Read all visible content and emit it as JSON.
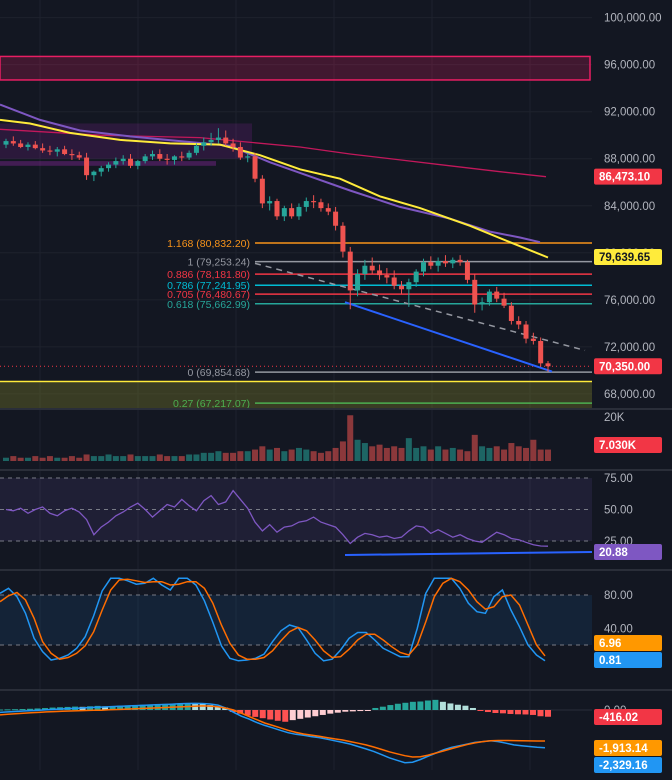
{
  "chart_data": [
    {
      "type": "candlestick",
      "panel": "price",
      "y_ticks": [
        "100,000.00",
        "96,000.00",
        "92,000.00",
        "88,000.00",
        "84,000.00",
        "80,000.00",
        "76,000.00",
        "72,000.00",
        "68,000.00"
      ],
      "ylim": [
        66800,
        101500
      ],
      "tick_values": [
        100000,
        96000,
        92000,
        88000,
        84000,
        80000,
        76000,
        72000,
        68000
      ],
      "fib_levels": [
        {
          "label": "1.168 (80,832.20)",
          "value": 80832.2,
          "color": "#f7931a"
        },
        {
          "label": "1 (79,253.24)",
          "value": 79253.24,
          "color": "#9598a1"
        },
        {
          "label": "0.886 (78,181.80)",
          "value": 78181.8,
          "color": "#f23645"
        },
        {
          "label": "0.786 (77,241.95)",
          "value": 77241.95,
          "color": "#00bcd4"
        },
        {
          "label": "0.705 (76,480.67)",
          "value": 76480.67,
          "color": "#f23645"
        },
        {
          "label": "0.618 (75,662.99)",
          "value": 75662.99,
          "color": "#26a69a"
        },
        {
          "label": "0 (69,854.68)",
          "value": 69854.68,
          "color": "#9598a1"
        },
        {
          "label": "0.27 (67,217.07)",
          "value": 67217.07,
          "color": "#4caf50"
        }
      ],
      "horizontal_support": {
        "value": 69050,
        "color": "#ffeb3b"
      },
      "price_tags": [
        {
          "text": "86,473.10",
          "value": 86473.1,
          "bg": "#f23645",
          "fg": "#ffffff"
        },
        {
          "text": "79,639.65",
          "value": 79639.65,
          "bg": "#ffeb3b",
          "fg": "#131722"
        },
        {
          "text": "70,350.00",
          "value": 70350,
          "bg": "#f23645",
          "fg": "#ffffff"
        }
      ],
      "candles_ohlc": [
        [
          89200,
          89700,
          88900,
          89500
        ],
        [
          89500,
          89900,
          89100,
          89300
        ],
        [
          89300,
          89600,
          88900,
          89000
        ],
        [
          89000,
          89400,
          88700,
          89200
        ],
        [
          89200,
          89500,
          88800,
          88900
        ],
        [
          88900,
          89300,
          88500,
          88700
        ],
        [
          88700,
          89100,
          88300,
          88600
        ],
        [
          88600,
          89000,
          88200,
          88800
        ],
        [
          88800,
          89100,
          88300,
          88400
        ],
        [
          88400,
          88800,
          87900,
          88300
        ],
        [
          88300,
          88600,
          87900,
          88100
        ],
        [
          88100,
          88500,
          86200,
          86600
        ],
        [
          86600,
          87000,
          86100,
          86900
        ],
        [
          86900,
          87400,
          86500,
          87200
        ],
        [
          87200,
          87700,
          86900,
          87500
        ],
        [
          87500,
          88100,
          87200,
          87800
        ],
        [
          87800,
          88300,
          87500,
          88000
        ],
        [
          88000,
          88400,
          87200,
          87400
        ],
        [
          87400,
          87900,
          87100,
          87800
        ],
        [
          87800,
          88400,
          87600,
          88200
        ],
        [
          88200,
          88700,
          87900,
          88400
        ],
        [
          88400,
          88800,
          87800,
          88000
        ],
        [
          88000,
          88400,
          87500,
          87900
        ],
        [
          87900,
          88300,
          87500,
          88200
        ],
        [
          88200,
          88600,
          87800,
          88100
        ],
        [
          88100,
          88700,
          87900,
          88500
        ],
        [
          88500,
          89300,
          88300,
          89100
        ],
        [
          89100,
          89800,
          88700,
          89400
        ],
        [
          89400,
          90200,
          89100,
          89600
        ],
        [
          89600,
          90600,
          89300,
          89800
        ],
        [
          89800,
          90400,
          89100,
          89300
        ],
        [
          89300,
          89700,
          88600,
          89000
        ],
        [
          89000,
          89400,
          87900,
          88100
        ],
        [
          88100,
          88500,
          87700,
          88200
        ],
        [
          88200,
          88500,
          86000,
          86300
        ],
        [
          86300,
          86600,
          83800,
          84200
        ],
        [
          84200,
          84800,
          83600,
          84400
        ],
        [
          84400,
          84600,
          82800,
          83100
        ],
        [
          83100,
          84000,
          82700,
          83800
        ],
        [
          83800,
          84200,
          82900,
          83100
        ],
        [
          83100,
          84200,
          82800,
          83900
        ],
        [
          83900,
          84700,
          83500,
          84400
        ],
        [
          84400,
          84900,
          83800,
          84300
        ],
        [
          84300,
          84600,
          83500,
          83800
        ],
        [
          83800,
          84200,
          83200,
          83500
        ],
        [
          83500,
          83900,
          81900,
          82300
        ],
        [
          82300,
          82600,
          79600,
          80100
        ],
        [
          80100,
          80500,
          75200,
          76800
        ],
        [
          76800,
          78600,
          76300,
          78200
        ],
        [
          78200,
          79400,
          77700,
          78900
        ],
        [
          78900,
          79600,
          78200,
          78500
        ],
        [
          78500,
          79000,
          77700,
          78100
        ],
        [
          78100,
          78700,
          77400,
          77900
        ],
        [
          77900,
          78500,
          76900,
          77200
        ],
        [
          77200,
          77600,
          76500,
          76900
        ],
        [
          76900,
          77800,
          75400,
          77500
        ],
        [
          77500,
          78600,
          77100,
          78400
        ],
        [
          78400,
          79500,
          78000,
          79200
        ],
        [
          79200,
          79700,
          78600,
          78900
        ],
        [
          78900,
          79600,
          78400,
          79300
        ],
        [
          79300,
          79800,
          78800,
          79100
        ],
        [
          79100,
          79600,
          78700,
          79400
        ],
        [
          79400,
          79800,
          78900,
          79200
        ],
        [
          79200,
          79400,
          77400,
          77700
        ],
        [
          77700,
          78200,
          74900,
          75600
        ],
        [
          75600,
          76200,
          75100,
          75800
        ],
        [
          75800,
          76900,
          75500,
          76700
        ],
        [
          76700,
          77100,
          75800,
          76100
        ],
        [
          76100,
          76600,
          75300,
          75500
        ],
        [
          75500,
          75800,
          73900,
          74200
        ],
        [
          74200,
          74600,
          73500,
          73900
        ],
        [
          73900,
          74200,
          72300,
          72700
        ],
        [
          72700,
          73200,
          72200,
          72500
        ],
        [
          72500,
          72800,
          70300,
          70600
        ],
        [
          70600,
          70800,
          69900,
          70350
        ]
      ],
      "ma_purple": [
        [
          0,
          92600
        ],
        [
          40,
          91300
        ],
        [
          80,
          90400
        ],
        [
          130,
          89900
        ],
        [
          180,
          89500
        ],
        [
          230,
          89100
        ],
        [
          270,
          87700
        ],
        [
          310,
          86500
        ],
        [
          350,
          85300
        ],
        [
          400,
          83900
        ],
        [
          450,
          82900
        ],
        [
          490,
          81800
        ],
        [
          520,
          81300
        ],
        [
          540,
          80900
        ]
      ],
      "ma_yellow": [
        [
          0,
          91300
        ],
        [
          30,
          91000
        ],
        [
          70,
          90200
        ],
        [
          120,
          89600
        ],
        [
          170,
          89300
        ],
        [
          220,
          89200
        ],
        [
          260,
          88300
        ],
        [
          300,
          87100
        ],
        [
          340,
          86300
        ],
        [
          380,
          84800
        ],
        [
          420,
          83800
        ],
        [
          470,
          82300
        ],
        [
          510,
          80900
        ],
        [
          548,
          79600
        ]
      ],
      "ma_pink": [
        [
          0,
          90500
        ],
        [
          100,
          90000
        ],
        [
          200,
          89800
        ],
        [
          300,
          89000
        ],
        [
          350,
          88400
        ],
        [
          400,
          87900
        ],
        [
          450,
          87400
        ],
        [
          500,
          86900
        ],
        [
          546,
          86473
        ]
      ]
    },
    {
      "type": "bar",
      "panel": "volume",
      "y_ticks": [
        "20K"
      ],
      "tag": {
        "text": "7.030K",
        "bg": "#f23645",
        "fg": "#ffffff"
      },
      "values": [
        2,
        3,
        2,
        2,
        3,
        2,
        3,
        2,
        2,
        3,
        2,
        4,
        3,
        3,
        4,
        3,
        3,
        4,
        3,
        3,
        3,
        4,
        3,
        3,
        3,
        4,
        4,
        5,
        5,
        6,
        5,
        5,
        6,
        6,
        7,
        9,
        7,
        8,
        6,
        7,
        8,
        7,
        6,
        5,
        6,
        8,
        12,
        28,
        13,
        11,
        9,
        10,
        8,
        9,
        8,
        14,
        8,
        9,
        7,
        9,
        7,
        8,
        7,
        6,
        16,
        9,
        8,
        9,
        7,
        11,
        9,
        8,
        13,
        7,
        7
      ],
      "colors_up": "#26a69a",
      "colors_down": "#ef5350"
    },
    {
      "type": "line",
      "panel": "RSI",
      "y_ticks": [
        "75.00",
        "50.00",
        "25.00"
      ],
      "tag": {
        "text": "20.88",
        "bg": "#7e57c2",
        "fg": "#ffffff"
      },
      "ylim": [
        0,
        100
      ],
      "values": [
        50,
        49,
        51,
        47,
        50,
        52,
        47,
        45,
        49,
        51,
        48,
        42,
        30,
        36,
        40,
        45,
        48,
        52,
        55,
        50,
        44,
        49,
        54,
        52,
        58,
        53,
        49,
        57,
        61,
        54,
        56,
        65,
        58,
        51,
        40,
        33,
        38,
        32,
        36,
        37,
        40,
        41,
        44,
        40,
        38,
        36,
        30,
        23,
        28,
        31,
        30,
        28,
        29,
        27,
        28,
        33,
        37,
        36,
        31,
        34,
        31,
        28,
        30,
        27,
        25,
        24,
        28,
        32,
        30,
        27,
        26,
        24,
        22,
        21,
        20.88
      ]
    },
    {
      "type": "line",
      "panel": "StochRSI",
      "y_ticks": [
        "80.00",
        "40.00"
      ],
      "tags": [
        {
          "text": "6.96",
          "bg": "#ff9800",
          "fg": "#ffffff"
        },
        {
          "text": "0.81",
          "bg": "#2196f3",
          "fg": "#ffffff"
        }
      ],
      "ylim": [
        0,
        100
      ],
      "k": [
        82,
        88,
        78,
        58,
        28,
        12,
        2,
        4,
        8,
        16,
        30,
        55,
        85,
        100,
        100,
        97,
        93,
        94,
        100,
        92,
        86,
        100,
        100,
        92,
        73,
        47,
        19,
        4,
        1,
        2,
        4,
        9,
        24,
        37,
        44,
        41,
        26,
        10,
        1,
        3,
        14,
        28,
        35,
        35,
        26,
        16,
        11,
        6,
        6,
        40,
        82,
        100,
        100,
        100,
        88,
        70,
        60,
        58,
        78,
        86,
        62,
        42,
        20,
        8,
        1
      ],
      "d": [
        72,
        79,
        83,
        74,
        52,
        24,
        10,
        3,
        5,
        10,
        19,
        36,
        62,
        86,
        98,
        99,
        97,
        95,
        96,
        96,
        92,
        93,
        96,
        96,
        88,
        70,
        44,
        22,
        8,
        3,
        3,
        5,
        13,
        25,
        36,
        41,
        37,
        26,
        13,
        5,
        6,
        15,
        26,
        33,
        33,
        26,
        18,
        11,
        8,
        20,
        48,
        78,
        94,
        100,
        96,
        86,
        72,
        63,
        66,
        78,
        80,
        68,
        44,
        20,
        6.96
      ]
    },
    {
      "type": "histogram+line",
      "panel": "MACD",
      "y_ticks": [
        "0.00"
      ],
      "tags": [
        {
          "text": "-416.02",
          "bg": "#f23645",
          "fg": "#ffffff"
        },
        {
          "text": "-1,913.14",
          "bg": "#ff9800",
          "fg": "#ffffff"
        },
        {
          "text": "-2,329.16",
          "bg": "#2196f3",
          "fg": "#ffffff"
        }
      ],
      "ylim": [
        -3700,
        500
      ],
      "histogram": [
        30,
        40,
        50,
        60,
        75,
        95,
        120,
        150,
        170,
        190,
        210,
        195,
        230,
        255,
        225,
        245,
        265,
        285,
        305,
        325,
        340,
        360,
        375,
        395,
        405,
        425,
        405,
        385,
        305,
        225,
        145,
        -125,
        -225,
        -345,
        -425,
        -505,
        -585,
        -665,
        -725,
        -625,
        -545,
        -465,
        -385,
        -305,
        -225,
        -165,
        -105,
        -85,
        -65,
        -45,
        125,
        205,
        305,
        385,
        445,
        505,
        525,
        585,
        625,
        505,
        405,
        325,
        265,
        125,
        -45,
        -125,
        -185,
        -205,
        -245,
        -265,
        -275,
        -305,
        -385,
        -416
      ],
      "macd": [
        -150,
        -120,
        -90,
        -60,
        -40,
        -10,
        20,
        40,
        70,
        90,
        110,
        140,
        160,
        180,
        200,
        220,
        240,
        260,
        280,
        300,
        320,
        340,
        360,
        380,
        400,
        410,
        400,
        370,
        300,
        120,
        -140,
        -380,
        -560,
        -780,
        -950,
        -1100,
        -1250,
        -1400,
        -1500,
        -1560,
        -1640,
        -1700,
        -1800,
        -1900,
        -2000,
        -2100,
        -2250,
        -2400,
        -2550,
        -2750,
        -2950,
        -3100,
        -3250,
        -3220,
        -3050,
        -2850,
        -2650,
        -2450,
        -2300,
        -2200,
        -2100,
        -2000,
        -1950,
        -1900,
        -1950,
        -2050,
        -2150,
        -2200,
        -2250,
        -2300,
        -2329
      ],
      "signal": [
        -300,
        -260,
        -230,
        -200,
        -170,
        -150,
        -120,
        -100,
        -80,
        -60,
        -50,
        -30,
        -20,
        -10,
        10,
        30,
        50,
        70,
        90,
        110,
        130,
        150,
        170,
        190,
        210,
        230,
        250,
        240,
        200,
        120,
        0,
        -200,
        -400,
        -600,
        -800,
        -950,
        -1100,
        -1250,
        -1380,
        -1480,
        -1550,
        -1620,
        -1700,
        -1780,
        -1850,
        -1950,
        -2050,
        -2150,
        -2280,
        -2430,
        -2580,
        -2700,
        -2820,
        -2900,
        -2880,
        -2780,
        -2650,
        -2520,
        -2380,
        -2250,
        -2130,
        -2030,
        -1950,
        -1900,
        -1880,
        -1880,
        -1890,
        -1900,
        -1905,
        -1910,
        -1913
      ]
    }
  ]
}
